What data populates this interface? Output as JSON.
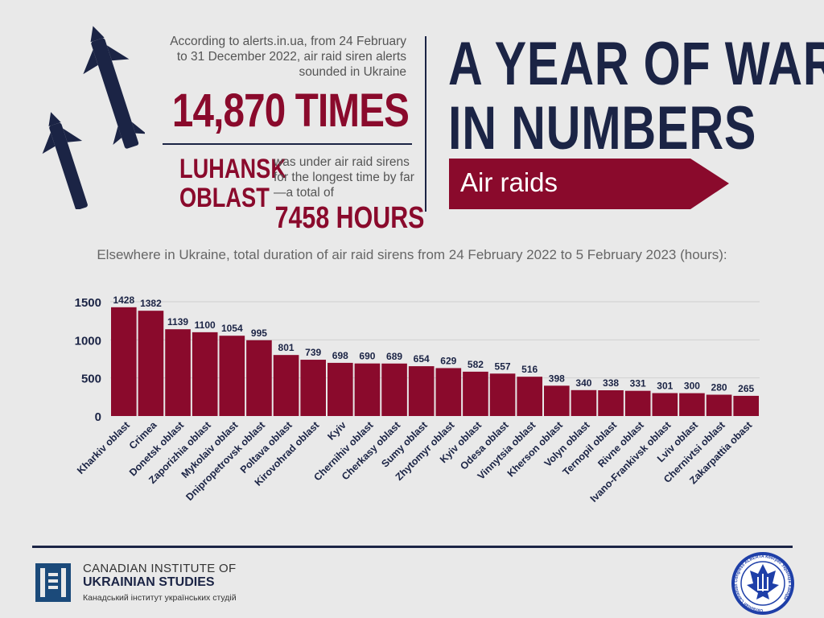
{
  "header": {
    "intro": "According to alerts.in.ua, from 24 February to 31 December 2022, air raid siren alerts sounded in Ukraine",
    "big_stat": "14,870 TIMES",
    "region": "LUHANSK OBLAST",
    "region_text": "was under air raid sirens for the longest time by far—a total of",
    "region_hours": "7458 HOURS",
    "title_line1": "A YEAR OF WAR",
    "title_line2": "IN NUMBERS",
    "banner": "Air raids"
  },
  "colors": {
    "bar": "#8a0a2c",
    "navy": "#1b2445",
    "background": "#e9e9e9"
  },
  "chart_data": {
    "type": "bar",
    "title": "Elsewhere in Ukraine, total duration of air raid sirens from 24 February 2022 to 5 February 2023 (hours):",
    "xlabel": "",
    "ylabel": "",
    "ylim": [
      0,
      1500
    ],
    "yticks": [
      0,
      500,
      1000,
      1500
    ],
    "ytick_labels": [
      "0",
      "500",
      "1000",
      "1500"
    ],
    "grid": true,
    "categories": [
      "Kharkiv oblast",
      "Crimea",
      "Donetsk oblast",
      "Zaporizhia oblast",
      "Mykolaiv oblast",
      "Dnipropetrovsk oblast",
      "Poltava oblast",
      "Kirovohrad oblast",
      "Kyiv",
      "Chernihiv oblast",
      "Cherkasy oblast",
      "Sumy oblast",
      "Zhytomyr oblast",
      "Kyiv oblast",
      "Odesa oblast",
      "Vinnytsia oblast",
      "Kherson oblast",
      "Volyn oblast",
      "Ternopil oblast",
      "Rivne oblast",
      "Ivano-Frankivsk oblast",
      "Lviv oblast",
      "Chernivtsi oblast",
      "Zakarpattia obast"
    ],
    "values": [
      1428,
      1382,
      1139,
      1100,
      1054,
      995,
      801,
      739,
      698,
      690,
      689,
      654,
      629,
      582,
      557,
      516,
      398,
      340,
      338,
      331,
      301,
      300,
      280,
      265
    ]
  },
  "footer": {
    "org_line1": "CANADIAN INSTITUTE OF",
    "org_line2": "UKRAINIAN STUDIES",
    "org_line3": "Канадський інститут українських студій",
    "partner_logo_text": "Ukrainian Canadian Congress ALBERTA Конгрес Українців Канади"
  }
}
